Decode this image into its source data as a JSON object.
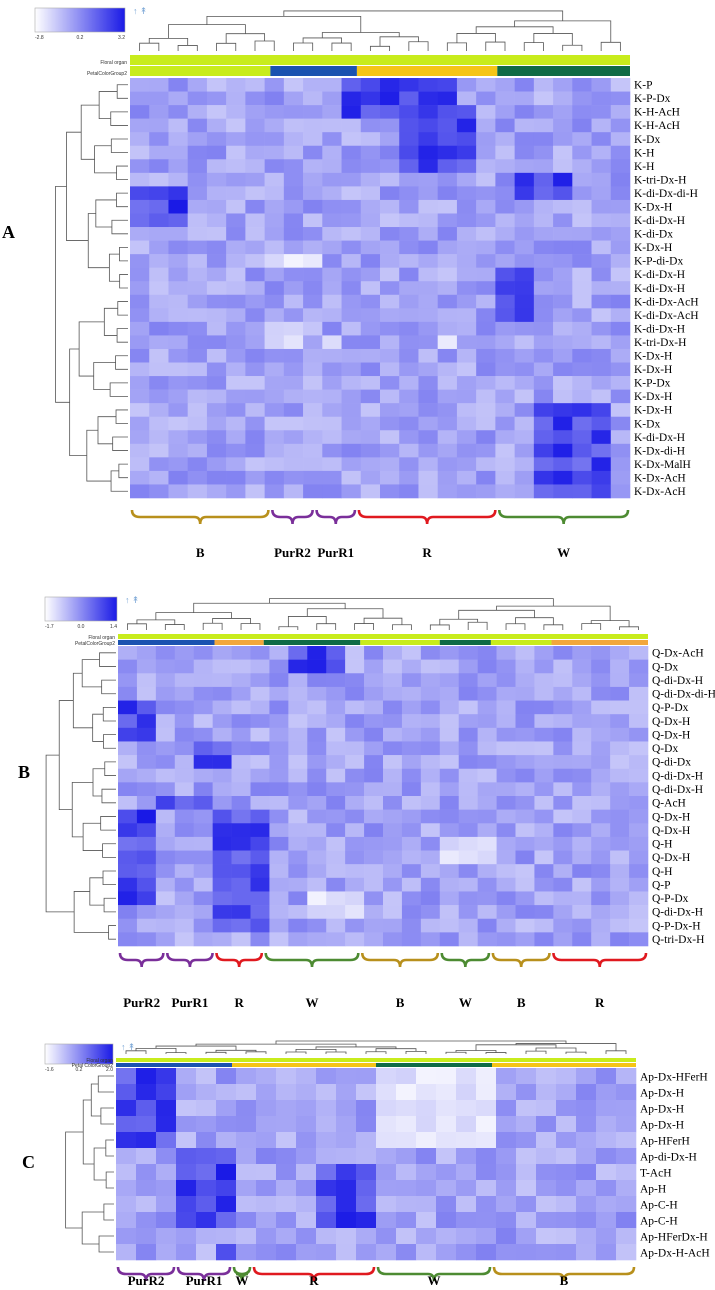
{
  "chart_data": [
    {
      "type": "heatmap",
      "panel_label": "A",
      "legend": {
        "min": "-2.8",
        "mid": "0.2",
        "max": "3.2"
      },
      "tracks": [
        "Floral organ",
        "PetalColorGroup2"
      ],
      "color_groups": [
        "lime",
        "blue",
        "yellow",
        "green"
      ],
      "rows": [
        "K-P",
        "K-P-Dx",
        "K-H-AcH",
        "K-H-AcH",
        "K-Dx",
        "K-H",
        "K-H",
        "K-tri-Dx-H",
        "K-di-Dx-di-H",
        "K-Dx-H",
        "K-di-Dx-H",
        "K-di-Dx",
        "K-Dx-H",
        "K-P-di-Dx",
        "K-di-Dx-H",
        "K-di-Dx-H",
        "K-di-Dx-AcH",
        "K-di-Dx-AcH",
        "K-di-Dx-H",
        "K-tri-Dx-H",
        "K-Dx-H",
        "K-Dx-H",
        "K-P-Dx",
        "K-Dx-H",
        "K-Dx-H",
        "K-Dx",
        "K-di-Dx-H",
        "K-Dx-di-H",
        "K-Dx-MalH",
        "K-Dx-AcH",
        "K-Dx-AcH"
      ],
      "group_labels": [
        "B",
        "PurR2",
        "PurR1",
        "R",
        "W"
      ]
    },
    {
      "type": "heatmap",
      "panel_label": "B",
      "legend": {
        "min": "-1.7",
        "mid": "0.0",
        "max": "1.4"
      },
      "tracks": [
        "Floral organ",
        "PetalColorGroup2"
      ],
      "rows": [
        "Q-Dx-AcH",
        "Q-Dx",
        "Q-di-Dx-H",
        "Q-di-Dx-di-H",
        "Q-P-Dx",
        "Q-Dx-H",
        "Q-Dx-H",
        "Q-Dx",
        "Q-di-Dx",
        "Q-di-Dx-H",
        "Q-di-Dx-H",
        "Q-AcH",
        "Q-Dx-H",
        "Q-Dx-H",
        "Q-H",
        "Q-Dx-H",
        "Q-H",
        "Q-P",
        "Q-P-Dx",
        "Q-di-Dx-H",
        "Q-P-Dx-H",
        "Q-tri-Dx-H"
      ],
      "group_labels": [
        "PurR2",
        "PurR1",
        "R",
        "W",
        "B",
        "W",
        "B",
        "R"
      ]
    },
    {
      "type": "heatmap",
      "panel_label": "C",
      "legend": {
        "min": "-1.6",
        "mid": "0.2",
        "max": "2.0"
      },
      "tracks": [
        "Floral organ",
        "Petal ColorGroup2"
      ],
      "rows": [
        "Ap-Dx-HFerH",
        "Ap-Dx-H",
        "Ap-Dx-H",
        "Ap-Dx-H",
        "Ap-HFerH",
        "Ap-di-Dx-H",
        "T-AcH",
        "Ap-H",
        "Ap-C-H",
        "Ap-C-H",
        "Ap-HFerDx-H",
        "Ap-Dx-H-AcH"
      ],
      "group_labels": [
        "PurR2",
        "PurR1",
        "W",
        "R",
        "W",
        "B"
      ]
    }
  ]
}
